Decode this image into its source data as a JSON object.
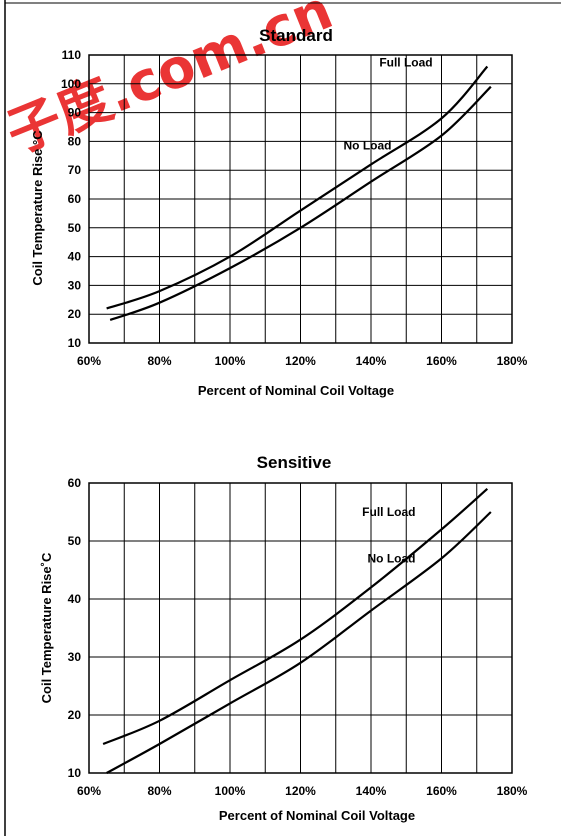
{
  "watermark": "子度.com.cn",
  "chart_data": [
    {
      "type": "line",
      "title": "Standard",
      "xlabel": "Percent of Nominal Coil Voltage",
      "ylabel": "Coil Temperature Rise °C",
      "xlim": [
        60,
        180
      ],
      "ylim": [
        10,
        110
      ],
      "x_ticks": [
        "60%",
        "80%",
        "100%",
        "120%",
        "140%",
        "160%",
        "180%"
      ],
      "y_ticks": [
        "10",
        "20",
        "30",
        "40",
        "50",
        "60",
        "70",
        "80",
        "90",
        "100",
        "110"
      ],
      "grid": true,
      "series": [
        {
          "name": "Full Load",
          "x": [
            65,
            80,
            100,
            120,
            140,
            160,
            173
          ],
          "y": [
            22,
            28,
            40,
            56,
            72,
            88,
            106
          ]
        },
        {
          "name": "No Load",
          "x": [
            66,
            80,
            100,
            120,
            140,
            160,
            174
          ],
          "y": [
            18,
            24,
            36,
            50,
            66,
            82,
            99
          ]
        }
      ]
    },
    {
      "type": "line",
      "title": "Sensitive",
      "xlabel": "Percent of Nominal Coil Voltage",
      "ylabel": "Coil Temperature Rise˚C",
      "xlim": [
        60,
        180
      ],
      "ylim": [
        10,
        60
      ],
      "x_ticks": [
        "60%",
        "80%",
        "100%",
        "120%",
        "140%",
        "160%",
        "180%"
      ],
      "y_ticks": [
        "10",
        "20",
        "30",
        "40",
        "50",
        "60"
      ],
      "grid": true,
      "series": [
        {
          "name": "Full Load",
          "x": [
            64,
            80,
            100,
            120,
            140,
            160,
            173
          ],
          "y": [
            15,
            19,
            26,
            33,
            42,
            52,
            59
          ]
        },
        {
          "name": "No Load",
          "x": [
            65,
            80,
            100,
            120,
            140,
            160,
            174
          ],
          "y": [
            10,
            15,
            22,
            29,
            38,
            47,
            55
          ]
        }
      ]
    }
  ]
}
